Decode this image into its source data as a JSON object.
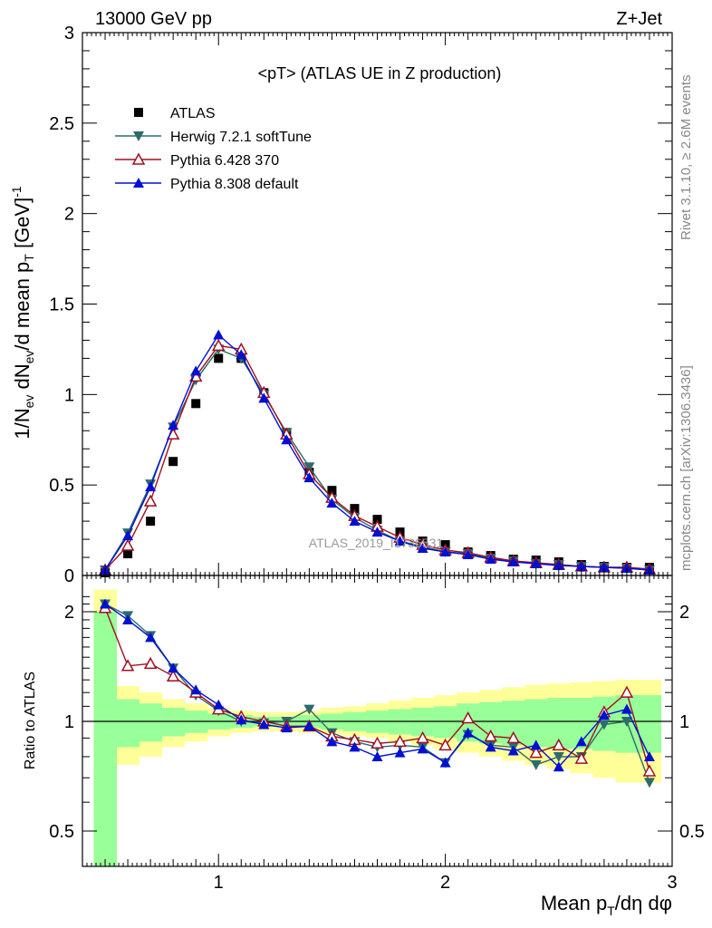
{
  "header": {
    "left": "13000 GeV pp",
    "right": "Z+Jet"
  },
  "side_labels": {
    "rivet": "Rivet 3.1.10, ≥ 2.6M events",
    "mcplots": "mcplots.cern.ch [arXiv:1306.3436]"
  },
  "watermark": "ATLAS_2019_I1736531",
  "colors": {
    "atlas": "#000000",
    "herwig": "#2e6b6b",
    "pythia6": "#a01020",
    "pythia8": "#0010d0",
    "band_inner": "#99ff99",
    "band_outer": "#ffff99"
  },
  "chart_data": [
    {
      "type": "line",
      "title": "<pT> (ATLAS UE in Z production)",
      "ylabel": "1/N_ev dN_ev/d mean p_T [GeV]^-1",
      "xlim": [
        0.4,
        3.0
      ],
      "ylim": [
        0,
        3
      ],
      "yticks": [
        "0",
        "0.5",
        "1",
        "1.5",
        "2",
        "2.5",
        "3"
      ],
      "x": [
        0.5,
        0.6,
        0.7,
        0.8,
        0.9,
        1.0,
        1.1,
        1.2,
        1.3,
        1.4,
        1.5,
        1.6,
        1.7,
        1.8,
        1.9,
        2.0,
        2.1,
        2.2,
        2.3,
        2.4,
        2.5,
        2.6,
        2.7,
        2.8,
        2.9
      ],
      "series": [
        {
          "name": "ATLAS",
          "values": [
            0.015,
            0.12,
            0.3,
            0.63,
            0.95,
            1.2,
            1.2,
            1.01,
            0.79,
            0.57,
            0.47,
            0.37,
            0.31,
            0.24,
            0.19,
            0.17,
            0.13,
            0.11,
            0.09,
            0.085,
            0.075,
            0.06,
            0.05,
            0.045,
            0.045
          ]
        },
        {
          "name": "Herwig 7.2.1 softTune",
          "values": [
            0.03,
            0.235,
            0.505,
            0.82,
            1.08,
            1.25,
            1.2,
            1.0,
            0.79,
            0.6,
            0.42,
            0.32,
            0.25,
            0.19,
            0.16,
            0.13,
            0.12,
            0.095,
            0.08,
            0.065,
            0.06,
            0.05,
            0.045,
            0.04,
            0.03
          ]
        },
        {
          "name": "Pythia 6.428 370",
          "values": [
            0.03,
            0.165,
            0.41,
            0.78,
            1.1,
            1.27,
            1.25,
            1.01,
            0.78,
            0.56,
            0.43,
            0.33,
            0.27,
            0.21,
            0.17,
            0.14,
            0.125,
            0.1,
            0.08,
            0.07,
            0.06,
            0.05,
            0.045,
            0.045,
            0.035
          ]
        },
        {
          "name": "Pythia 8.308 default",
          "values": [
            0.03,
            0.22,
            0.49,
            0.83,
            1.13,
            1.33,
            1.22,
            0.98,
            0.75,
            0.54,
            0.4,
            0.3,
            0.24,
            0.19,
            0.15,
            0.13,
            0.115,
            0.09,
            0.075,
            0.065,
            0.055,
            0.05,
            0.045,
            0.04,
            0.03
          ]
        }
      ]
    },
    {
      "type": "line",
      "xlabel": "Mean p_T/dη dφ",
      "ylabel": "Ratio to ATLAS",
      "xlim": [
        0.4,
        3.0
      ],
      "ylim": [
        0.35,
        2.3
      ],
      "yticks": [
        "0.5",
        "1",
        "2"
      ],
      "xticks": [
        "1",
        "2",
        "3"
      ],
      "x": [
        0.5,
        0.6,
        0.7,
        0.8,
        0.9,
        1.0,
        1.1,
        1.2,
        1.3,
        1.4,
        1.5,
        1.6,
        1.7,
        1.8,
        1.9,
        2.0,
        2.1,
        2.2,
        2.3,
        2.4,
        2.5,
        2.6,
        2.7,
        2.8,
        2.9
      ],
      "bands": {
        "inner": {
          "low": [
            0.3,
            0.85,
            0.88,
            0.91,
            0.93,
            0.95,
            0.96,
            0.97,
            0.97,
            0.96,
            0.95,
            0.94,
            0.93,
            0.92,
            0.91,
            0.9,
            0.88,
            0.87,
            0.86,
            0.85,
            0.84,
            0.84,
            0.83,
            0.82,
            0.82
          ],
          "high": [
            2.0,
            1.15,
            1.12,
            1.09,
            1.07,
            1.05,
            1.04,
            1.03,
            1.03,
            1.04,
            1.05,
            1.06,
            1.07,
            1.08,
            1.09,
            1.1,
            1.12,
            1.13,
            1.14,
            1.15,
            1.16,
            1.16,
            1.17,
            1.18,
            1.18
          ]
        },
        "outer": {
          "low": [
            0.3,
            0.76,
            0.8,
            0.85,
            0.88,
            0.91,
            0.93,
            0.94,
            0.94,
            0.93,
            0.92,
            0.91,
            0.9,
            0.88,
            0.86,
            0.84,
            0.82,
            0.8,
            0.78,
            0.76,
            0.74,
            0.72,
            0.7,
            0.68,
            0.68
          ],
          "high": [
            2.3,
            1.25,
            1.2,
            1.15,
            1.12,
            1.09,
            1.07,
            1.06,
            1.06,
            1.07,
            1.09,
            1.1,
            1.12,
            1.14,
            1.16,
            1.18,
            1.2,
            1.22,
            1.24,
            1.26,
            1.27,
            1.28,
            1.29,
            1.3,
            1.3
          ]
        }
      },
      "series": [
        {
          "name": "Herwig 7.2.1 softTune",
          "values": [
            2.1,
            1.95,
            1.72,
            1.4,
            1.18,
            1.07,
            1.0,
            0.99,
            1.0,
            1.08,
            0.93,
            0.88,
            0.85,
            0.86,
            0.85,
            0.77,
            0.92,
            0.86,
            0.85,
            0.76,
            0.8,
            0.8,
            0.98,
            1.0,
            0.68
          ]
        },
        {
          "name": "Pythia 6.428 370",
          "values": [
            2.05,
            1.42,
            1.44,
            1.33,
            1.2,
            1.08,
            1.03,
            1.0,
            0.97,
            0.97,
            0.91,
            0.89,
            0.87,
            0.88,
            0.9,
            0.86,
            1.02,
            0.91,
            0.9,
            0.82,
            0.86,
            0.79,
            1.06,
            1.2,
            0.73
          ]
        },
        {
          "name": "Pythia 8.308 default",
          "values": [
            2.1,
            1.9,
            1.7,
            1.4,
            1.22,
            1.11,
            1.01,
            0.98,
            0.96,
            0.97,
            0.88,
            0.85,
            0.8,
            0.82,
            0.84,
            0.77,
            0.93,
            0.85,
            0.83,
            0.86,
            0.75,
            0.88,
            1.04,
            1.08,
            0.8
          ]
        }
      ]
    }
  ]
}
